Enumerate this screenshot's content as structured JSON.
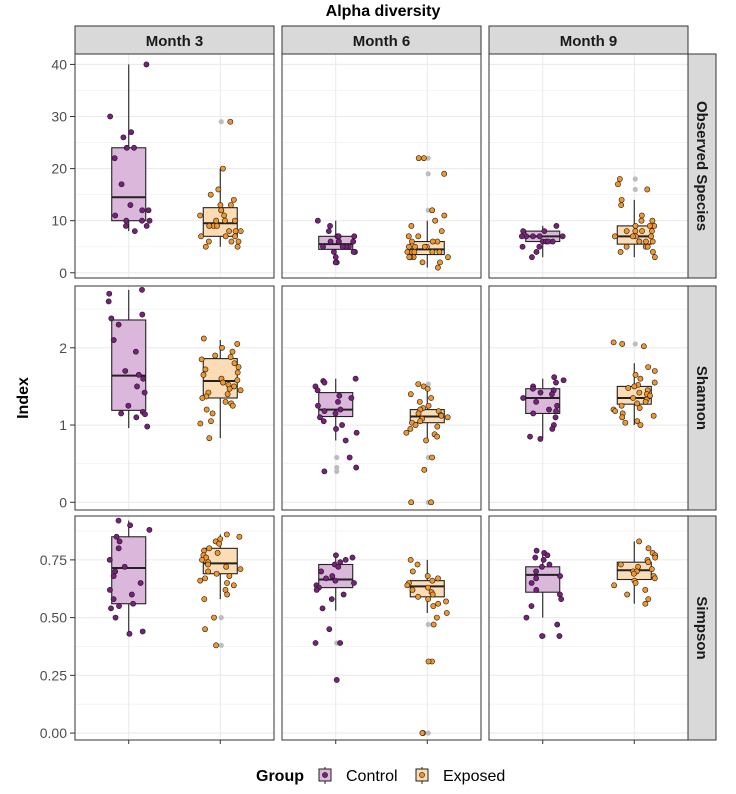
{
  "chart_data": {
    "type": "boxplot",
    "title": "Alpha diversity",
    "ylabel": "Index",
    "columns": [
      "Month 3",
      "Month 6",
      "Month 9"
    ],
    "rows": [
      {
        "name": "Observed Species",
        "ylim": [
          -1,
          42
        ],
        "ticks": [
          0,
          10,
          20,
          30,
          40
        ],
        "tick_labels": [
          "0",
          "10",
          "20",
          "30",
          "40"
        ]
      },
      {
        "name": "Shannon",
        "ylim": [
          -0.1,
          2.8
        ],
        "ticks": [
          0,
          1,
          2
        ],
        "tick_labels": [
          "0",
          "1",
          "2"
        ]
      },
      {
        "name": "Simpson",
        "ylim": [
          -0.03,
          0.94
        ],
        "ticks": [
          0,
          0.25,
          0.5,
          0.75
        ],
        "tick_labels": [
          "0.00",
          "0.25",
          "0.50",
          "0.75"
        ]
      }
    ],
    "legend": {
      "title": "Group",
      "position": "bottom",
      "items": [
        "Control",
        "Exposed"
      ]
    },
    "colors": {
      "Control": {
        "point": "#7b1f7e",
        "fill": "#dcb7dc"
      },
      "Exposed": {
        "point": "#f0962a",
        "fill": "#fbdcb4"
      },
      "outlier": "#bdbdbd",
      "strip": "#d9d9d9",
      "grid": "#ebebeb"
    },
    "boxes": [
      {
        "row": 0,
        "col": 0,
        "group": "Control",
        "stats": {
          "q1": 10,
          "median": 14.5,
          "q3": 24,
          "lo": 8,
          "hi": 40
        },
        "points": [
          40,
          30,
          27,
          26,
          24,
          24,
          22,
          17,
          13,
          12,
          12,
          11,
          10,
          10,
          10,
          9,
          9,
          8
        ]
      },
      {
        "row": 0,
        "col": 0,
        "group": "Exposed",
        "stats": {
          "q1": 7,
          "median": 9.5,
          "q3": 12.5,
          "lo": 5,
          "hi": 20
        },
        "points": [
          29,
          20,
          16,
          15,
          14,
          13,
          13,
          12,
          12,
          11,
          11,
          10,
          10,
          10,
          9,
          9,
          9,
          8,
          8,
          8,
          7,
          7,
          7,
          6,
          6,
          6,
          5,
          5
        ],
        "outliers": [
          29
        ]
      },
      {
        "row": 0,
        "col": 1,
        "group": "Control",
        "stats": {
          "q1": 4.5,
          "median": 5.5,
          "q3": 7,
          "lo": 2,
          "hi": 10
        },
        "points": [
          10,
          9,
          8,
          7,
          7,
          7,
          7,
          6,
          6,
          6,
          6,
          5,
          5,
          5,
          5,
          4,
          4,
          4,
          3,
          2,
          2
        ]
      },
      {
        "row": 0,
        "col": 1,
        "group": "Exposed",
        "stats": {
          "q1": 3.5,
          "median": 4.5,
          "q3": 6,
          "lo": 1,
          "hi": 10
        },
        "points": [
          22,
          22,
          19,
          12,
          11,
          10,
          9,
          8,
          7,
          7,
          6,
          6,
          6,
          5,
          5,
          5,
          5,
          4,
          4,
          4,
          4,
          4,
          4,
          3,
          3,
          3,
          3,
          2,
          2,
          1
        ],
        "outliers": [
          22,
          19,
          12
        ]
      },
      {
        "row": 0,
        "col": 2,
        "group": "Control",
        "stats": {
          "q1": 6,
          "median": 7,
          "q3": 8,
          "lo": 3,
          "hi": 9
        },
        "points": [
          9,
          8,
          8,
          7,
          7,
          7,
          7,
          7,
          6,
          6,
          6,
          6,
          5,
          5,
          4,
          3
        ]
      },
      {
        "row": 0,
        "col": 2,
        "group": "Exposed",
        "stats": {
          "q1": 5.5,
          "median": 7,
          "q3": 9,
          "lo": 3,
          "hi": 14
        },
        "points": [
          18,
          17,
          16,
          14,
          13,
          11,
          10,
          10,
          9,
          9,
          9,
          8,
          8,
          8,
          8,
          7,
          7,
          7,
          7,
          6,
          6,
          6,
          6,
          5,
          5,
          5,
          4,
          4,
          3
        ],
        "outliers": [
          18,
          16
        ]
      },
      {
        "row": 1,
        "col": 0,
        "group": "Control",
        "stats": {
          "q1": 1.19,
          "median": 1.64,
          "q3": 2.36,
          "lo": 0.96,
          "hi": 2.75
        },
        "points": [
          2.75,
          2.7,
          2.6,
          2.43,
          2.38,
          2.3,
          2.1,
          1.95,
          1.7,
          1.65,
          1.6,
          1.5,
          1.42,
          1.25,
          1.17,
          1.15,
          1.14,
          1.1,
          0.98
        ]
      },
      {
        "row": 1,
        "col": 0,
        "group": "Exposed",
        "stats": {
          "q1": 1.35,
          "median": 1.57,
          "q3": 1.86,
          "lo": 0.83,
          "hi": 2.1
        },
        "points": [
          2.12,
          2.05,
          2.0,
          1.95,
          1.9,
          1.88,
          1.85,
          1.8,
          1.75,
          1.72,
          1.68,
          1.65,
          1.6,
          1.58,
          1.55,
          1.52,
          1.5,
          1.47,
          1.45,
          1.42,
          1.4,
          1.37,
          1.35,
          1.3,
          1.28,
          1.25,
          1.2,
          1.15,
          1.05,
          1.02,
          0.83
        ]
      },
      {
        "row": 1,
        "col": 1,
        "group": "Control",
        "stats": {
          "q1": 1.11,
          "median": 1.2,
          "q3": 1.42,
          "lo": 0.8,
          "hi": 1.6
        },
        "points": [
          1.6,
          1.57,
          1.55,
          1.5,
          1.45,
          1.38,
          1.35,
          1.3,
          1.25,
          1.2,
          1.18,
          1.15,
          1.1,
          1.05,
          1.0,
          0.95,
          0.9,
          0.8,
          0.58,
          0.45,
          0.4
        ],
        "outliers": [
          0.58,
          0.45,
          0.4
        ]
      },
      {
        "row": 1,
        "col": 1,
        "group": "Exposed",
        "stats": {
          "q1": 1.03,
          "median": 1.11,
          "q3": 1.2,
          "lo": 0.83,
          "hi": 1.5
        },
        "points": [
          1.53,
          1.5,
          1.47,
          1.4,
          1.35,
          1.3,
          1.25,
          1.22,
          1.2,
          1.18,
          1.15,
          1.13,
          1.12,
          1.1,
          1.08,
          1.05,
          1.03,
          1.0,
          0.98,
          0.95,
          0.9,
          0.88,
          0.85,
          0.8,
          0.58,
          0.42,
          0.0,
          0.0
        ],
        "outliers": [
          1.53,
          0.58,
          0.0
        ]
      },
      {
        "row": 1,
        "col": 2,
        "group": "Control",
        "stats": {
          "q1": 1.15,
          "median": 1.35,
          "q3": 1.47,
          "lo": 0.83,
          "hi": 1.6
        },
        "points": [
          1.62,
          1.58,
          1.55,
          1.5,
          1.47,
          1.45,
          1.42,
          1.4,
          1.35,
          1.3,
          1.25,
          1.2,
          1.18,
          1.15,
          1.1,
          1.0,
          0.95,
          0.85,
          0.82
        ]
      },
      {
        "row": 1,
        "col": 2,
        "group": "Exposed",
        "stats": {
          "q1": 1.27,
          "median": 1.35,
          "q3": 1.5,
          "lo": 1.0,
          "hi": 1.8
        },
        "points": [
          2.07,
          2.05,
          2.02,
          1.75,
          1.7,
          1.65,
          1.6,
          1.55,
          1.52,
          1.5,
          1.48,
          1.45,
          1.42,
          1.4,
          1.38,
          1.35,
          1.33,
          1.3,
          1.28,
          1.25,
          1.22,
          1.2,
          1.18,
          1.15,
          1.12,
          1.1,
          1.05,
          1.03,
          1.0
        ],
        "outliers": [
          2.05
        ]
      },
      {
        "row": 2,
        "col": 0,
        "group": "Control",
        "stats": {
          "q1": 0.56,
          "median": 0.715,
          "q3": 0.85,
          "lo": 0.43,
          "hi": 0.92
        },
        "points": [
          0.92,
          0.9,
          0.88,
          0.85,
          0.83,
          0.8,
          0.75,
          0.72,
          0.7,
          0.68,
          0.65,
          0.62,
          0.6,
          0.58,
          0.56,
          0.55,
          0.54,
          0.5,
          0.44,
          0.43
        ]
      },
      {
        "row": 2,
        "col": 0,
        "group": "Exposed",
        "stats": {
          "q1": 0.69,
          "median": 0.735,
          "q3": 0.8,
          "lo": 0.58,
          "hi": 0.86
        },
        "points": [
          0.86,
          0.85,
          0.84,
          0.83,
          0.82,
          0.8,
          0.79,
          0.78,
          0.77,
          0.76,
          0.75,
          0.74,
          0.73,
          0.72,
          0.71,
          0.7,
          0.69,
          0.68,
          0.67,
          0.66,
          0.65,
          0.64,
          0.62,
          0.6,
          0.58,
          0.5,
          0.45,
          0.38
        ],
        "outliers": [
          0.5,
          0.38
        ]
      },
      {
        "row": 2,
        "col": 1,
        "group": "Control",
        "stats": {
          "q1": 0.63,
          "median": 0.665,
          "q3": 0.73,
          "lo": 0.53,
          "hi": 0.77
        },
        "points": [
          0.77,
          0.76,
          0.75,
          0.74,
          0.73,
          0.72,
          0.7,
          0.68,
          0.67,
          0.66,
          0.65,
          0.64,
          0.63,
          0.62,
          0.6,
          0.58,
          0.54,
          0.45,
          0.39,
          0.39,
          0.23
        ],
        "outliers": [
          0.39,
          0.23
        ]
      },
      {
        "row": 2,
        "col": 1,
        "group": "Exposed",
        "stats": {
          "q1": 0.59,
          "median": 0.635,
          "q3": 0.66,
          "lo": 0.52,
          "hi": 0.75
        },
        "points": [
          0.75,
          0.73,
          0.7,
          0.68,
          0.67,
          0.66,
          0.65,
          0.64,
          0.63,
          0.62,
          0.61,
          0.6,
          0.59,
          0.58,
          0.57,
          0.56,
          0.55,
          0.52,
          0.5,
          0.47,
          0.31,
          0.31,
          0.0,
          0.0
        ],
        "outliers": [
          0.47,
          0.31,
          0.0
        ]
      },
      {
        "row": 2,
        "col": 2,
        "group": "Control",
        "stats": {
          "q1": 0.61,
          "median": 0.685,
          "q3": 0.72,
          "lo": 0.5,
          "hi": 0.78
        },
        "points": [
          0.79,
          0.78,
          0.77,
          0.76,
          0.75,
          0.73,
          0.72,
          0.7,
          0.68,
          0.67,
          0.65,
          0.62,
          0.6,
          0.58,
          0.55,
          0.5,
          0.47,
          0.42,
          0.42
        ],
        "outliers": [
          0.42
        ]
      },
      {
        "row": 2,
        "col": 2,
        "group": "Exposed",
        "stats": {
          "q1": 0.665,
          "median": 0.705,
          "q3": 0.74,
          "lo": 0.56,
          "hi": 0.83
        },
        "points": [
          0.83,
          0.8,
          0.78,
          0.77,
          0.76,
          0.75,
          0.74,
          0.73,
          0.72,
          0.71,
          0.7,
          0.7,
          0.69,
          0.68,
          0.67,
          0.66,
          0.65,
          0.64,
          0.62,
          0.6,
          0.58,
          0.56
        ]
      }
    ]
  }
}
